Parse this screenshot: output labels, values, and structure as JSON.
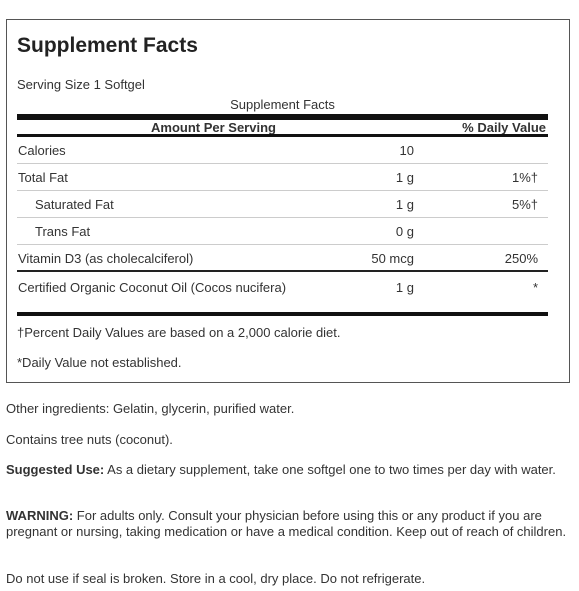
{
  "supplement_facts": {
    "title": "Supplement Facts",
    "serving_size": "Serving Size 1 Softgel",
    "table_caption": "Supplement Facts",
    "header": {
      "amount_per_serving": "Amount Per Serving",
      "daily_value": "% Daily Value"
    },
    "rows": [
      {
        "name": "Calories",
        "amount": "10",
        "dv": ""
      },
      {
        "name": "Total Fat",
        "amount": "1 g",
        "dv": "1%†"
      },
      {
        "name": "Saturated Fat",
        "amount": "1 g",
        "dv": "5%†"
      },
      {
        "name": "Trans Fat",
        "amount": "0 g",
        "dv": ""
      },
      {
        "name": "Vitamin D3 (as cholecalciferol)",
        "amount": "50 mcg",
        "dv": "250%"
      },
      {
        "name": "Certified Organic Coconut Oil (Cocos nucifera)",
        "amount": "1 g",
        "dv": "*"
      }
    ],
    "footnotes": [
      "†Percent Daily Values are based on a 2,000 calorie diet.",
      "*Daily Value not established."
    ]
  },
  "other_ingredients": "Other ingredients: Gelatin, glycerin, purified water.",
  "allergen_statement": "Contains tree nuts (coconut).",
  "suggested_use": {
    "label": "Suggested Use:",
    "text": " As a dietary supplement, take one softgel one to two times per day with water."
  },
  "warning": {
    "label": "WARNING:",
    "text": " For adults only. Consult your physician before using this or any product if you are pregnant or nursing, taking medication or have a medical condition. Keep out of reach of children."
  },
  "storage": "Do not use if seal is broken. Store in a cool, dry place. Do not refrigerate."
}
